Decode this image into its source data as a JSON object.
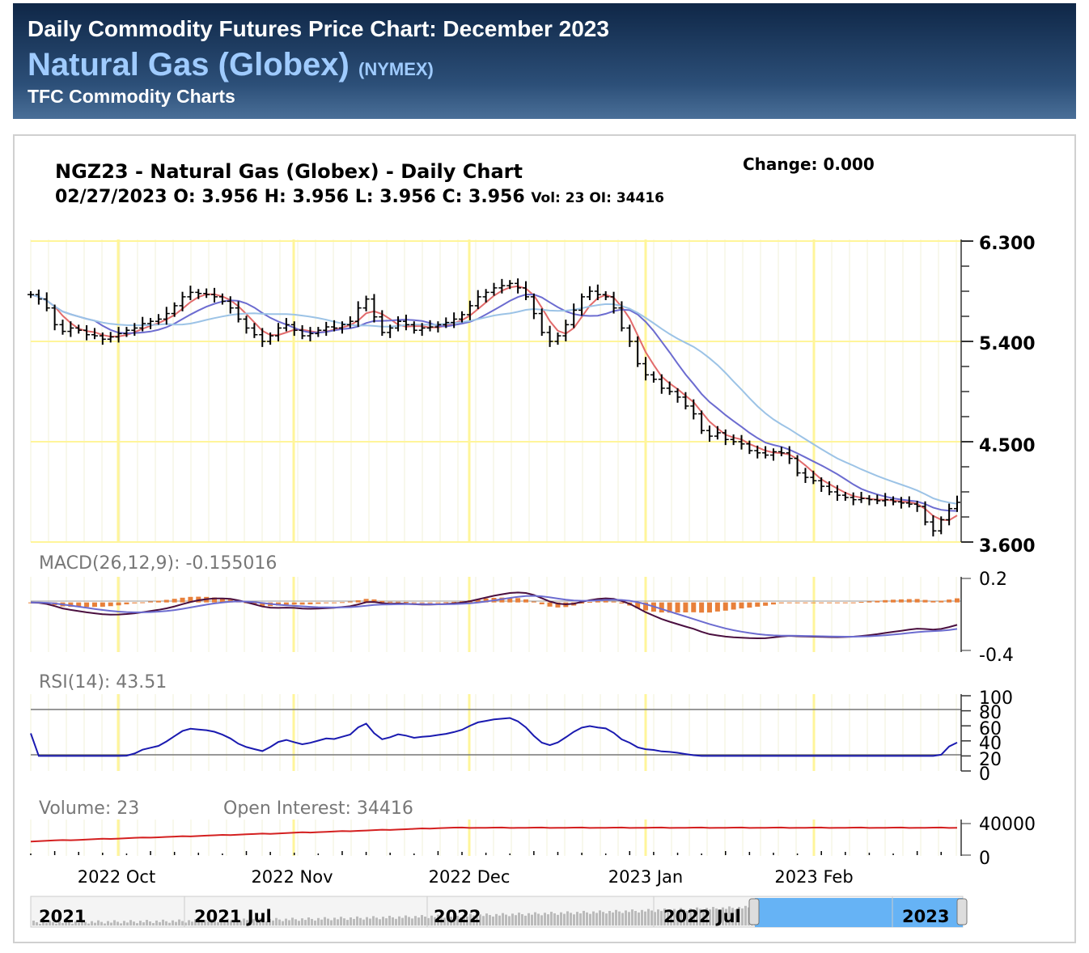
{
  "header": {
    "title": "Daily Commodity Futures Price Chart: December 2023",
    "commodity": "Natural Gas (Globex)",
    "exchange": "(NYMEX)",
    "site": "TFC Commodity Charts"
  },
  "chart_data": {
    "type": "candlestick",
    "title": "NGZ23 - Natural Gas (Globex) - Daily Chart",
    "quote": {
      "date": "02/27/2023",
      "ohlc_text": "O: 3.956 H: 3.956 L: 3.956 C: 3.956",
      "vol_oi_text": "Vol: 23 OI: 34416",
      "change_text": "Change: 0.000"
    },
    "price_axis": {
      "min": 3.6,
      "max": 6.3,
      "ticks": [
        "6.300",
        "5.400",
        "4.500",
        "3.600"
      ]
    },
    "x_labels": [
      "2022 Oct",
      "2022 Nov",
      "2022 Dec",
      "2023 Jan",
      "2023 Feb"
    ],
    "closes": [
      5.82,
      5.78,
      5.7,
      5.55,
      5.49,
      5.52,
      5.5,
      5.46,
      5.45,
      5.42,
      5.44,
      5.47,
      5.5,
      5.52,
      5.56,
      5.58,
      5.6,
      5.65,
      5.72,
      5.8,
      5.84,
      5.83,
      5.82,
      5.8,
      5.76,
      5.7,
      5.6,
      5.52,
      5.46,
      5.4,
      5.45,
      5.52,
      5.55,
      5.5,
      5.45,
      5.47,
      5.5,
      5.53,
      5.52,
      5.55,
      5.58,
      5.7,
      5.78,
      5.62,
      5.48,
      5.52,
      5.58,
      5.55,
      5.5,
      5.52,
      5.53,
      5.55,
      5.57,
      5.6,
      5.64,
      5.72,
      5.8,
      5.84,
      5.88,
      5.9,
      5.92,
      5.88,
      5.8,
      5.65,
      5.48,
      5.4,
      5.45,
      5.55,
      5.68,
      5.8,
      5.85,
      5.82,
      5.8,
      5.7,
      5.52,
      5.4,
      5.2,
      5.1,
      5.06,
      4.98,
      4.95,
      4.9,
      4.82,
      4.75,
      4.6,
      4.55,
      4.58,
      4.52,
      4.5,
      4.48,
      4.42,
      4.4,
      4.38,
      4.41,
      4.4,
      4.35,
      4.22,
      4.18,
      4.15,
      4.1,
      4.05,
      4.02,
      4.0,
      3.98,
      3.99,
      3.98,
      3.97,
      3.98,
      3.96,
      3.95,
      3.94,
      3.92,
      3.78,
      3.7,
      3.8,
      3.9,
      3.956
    ],
    "moving_average_colors": [
      "#e26b6b",
      "#6c6cd0",
      "#9cc3e6"
    ],
    "macd": {
      "label": "MACD(26,12,9): -0.155016",
      "value": -0.155016,
      "ticks": [
        "0.2",
        "-0.4"
      ]
    },
    "rsi": {
      "label": "RSI(14): 43.51",
      "value": 43.51,
      "ticks": [
        "100",
        "80",
        "60",
        "40",
        "20",
        "0"
      ],
      "levels": [
        80,
        20
      ]
    },
    "volume": {
      "label": "Volume: 23",
      "value": 23,
      "oi_label": "Open Interest: 34416",
      "oi_value": 34416,
      "ticks": [
        "40000",
        "0"
      ]
    },
    "navigator": {
      "labels": [
        "2021",
        "2021 Jul",
        "2022",
        "2022 Jul",
        "2023"
      ],
      "highlight_color": "#66b3f5"
    }
  }
}
